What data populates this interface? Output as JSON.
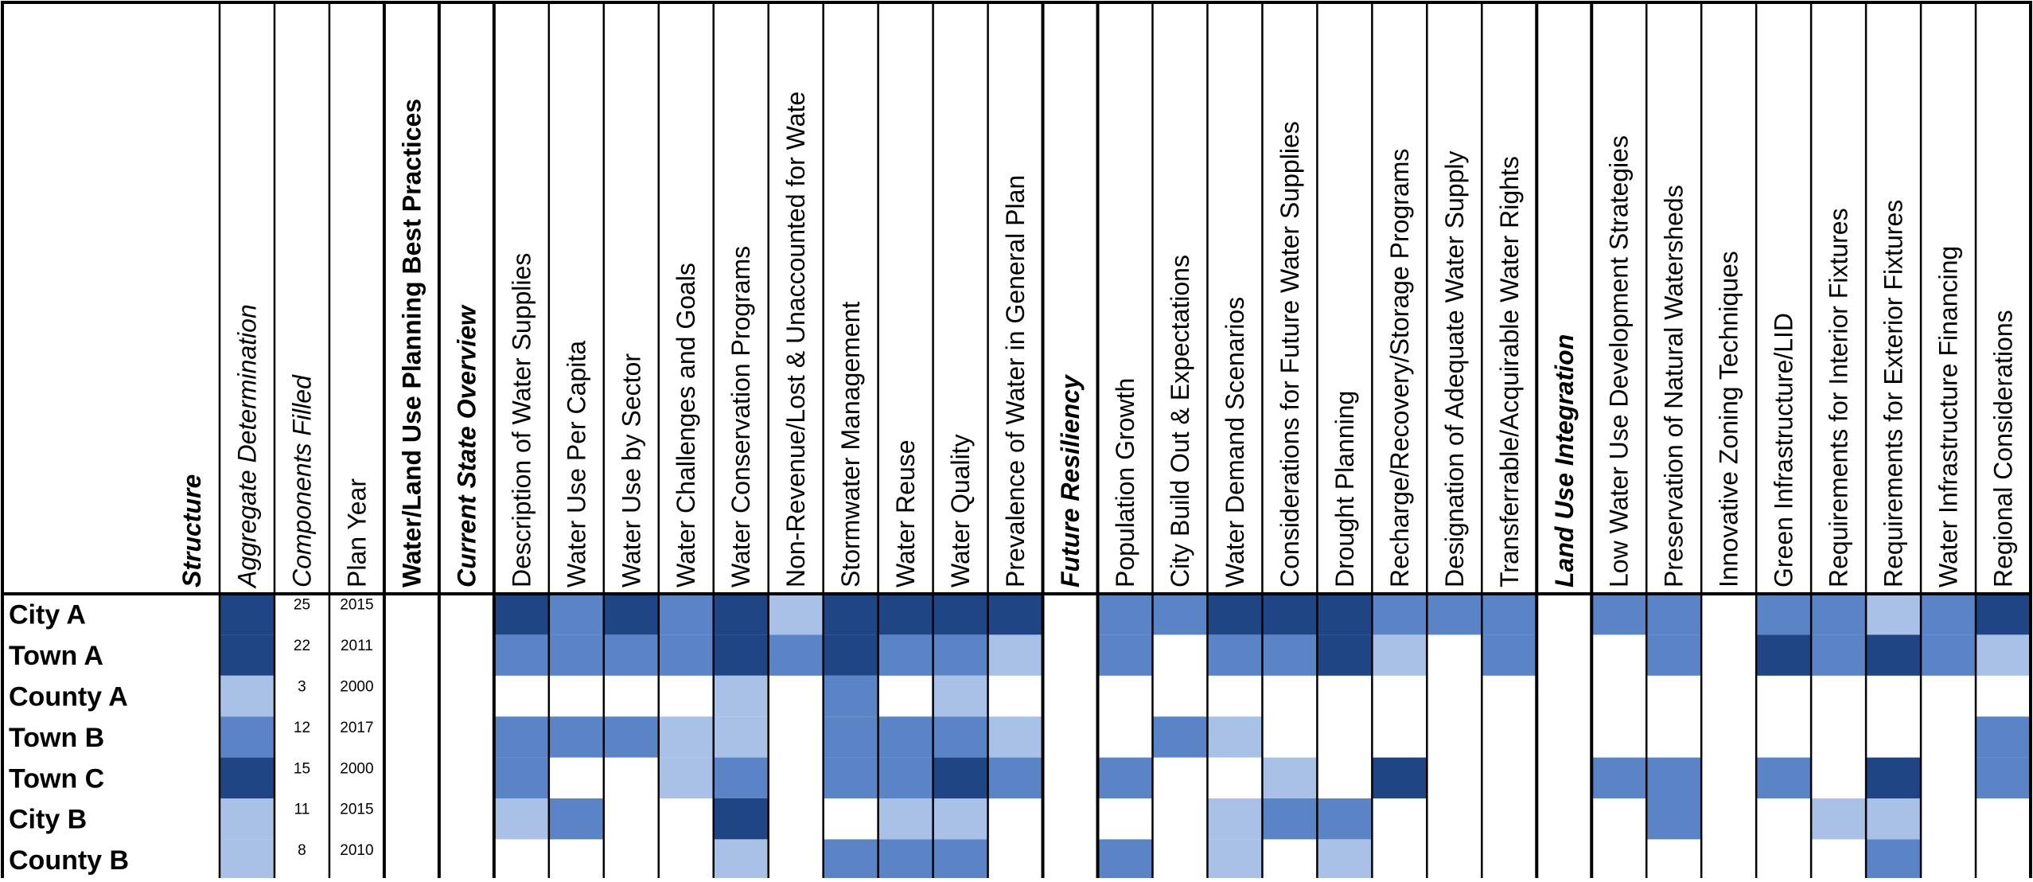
{
  "chart_data": {
    "type": "heatmap",
    "columns": [
      {
        "label": "Structure",
        "style": "bolditalic",
        "kind": "structure"
      },
      {
        "label": "Aggregate Determination",
        "style": "italic",
        "kind": "aggregate"
      },
      {
        "label": "Components Filled",
        "style": "italic",
        "kind": "components"
      },
      {
        "label": "Plan Year",
        "style": "normal",
        "kind": "year"
      },
      {
        "label": "Water/Land Use Planning Best Practices",
        "style": "bold",
        "kind": "section"
      },
      {
        "label": "Current State Overview",
        "style": "bolditalic",
        "kind": "section"
      },
      {
        "label": "Description of Water Supplies",
        "style": "normal",
        "kind": "data"
      },
      {
        "label": "Water Use Per Capita",
        "style": "normal",
        "kind": "data"
      },
      {
        "label": "Water Use by Sector",
        "style": "normal",
        "kind": "data"
      },
      {
        "label": "Water Challenges and Goals",
        "style": "normal",
        "kind": "data"
      },
      {
        "label": "Water Conservation Programs",
        "style": "normal",
        "kind": "data"
      },
      {
        "label": "Non-Revenue/Lost & Unaccounted for Wate",
        "style": "normal",
        "kind": "data"
      },
      {
        "label": "Stormwater Management",
        "style": "normal",
        "kind": "data"
      },
      {
        "label": "Water Reuse",
        "style": "normal",
        "kind": "data"
      },
      {
        "label": "Water Quality",
        "style": "normal",
        "kind": "data"
      },
      {
        "label": "Prevalence of Water in General Plan",
        "style": "normal",
        "kind": "data"
      },
      {
        "label": "Future Resiliency",
        "style": "bolditalic",
        "kind": "section"
      },
      {
        "label": "Population Growth",
        "style": "normal",
        "kind": "data"
      },
      {
        "label": "City Build Out & Expectations",
        "style": "normal",
        "kind": "data"
      },
      {
        "label": "Water Demand Scenarios",
        "style": "normal",
        "kind": "data"
      },
      {
        "label": "Considerations for Future Water Supplies",
        "style": "normal",
        "kind": "data"
      },
      {
        "label": "Drought Planning",
        "style": "normal",
        "kind": "data"
      },
      {
        "label": "Recharge/Recovery/Storage Programs",
        "style": "normal",
        "kind": "data"
      },
      {
        "label": "Designation of Adequate Water Supply",
        "style": "normal",
        "kind": "data"
      },
      {
        "label": "Transferrable/Acquirable Water Rights",
        "style": "normal",
        "kind": "data"
      },
      {
        "label": "Land Use Integration",
        "style": "bolditalic",
        "kind": "section"
      },
      {
        "label": "Low Water Use Development Strategies",
        "style": "normal",
        "kind": "data"
      },
      {
        "label": "Preservation of Natural Watersheds",
        "style": "normal",
        "kind": "data"
      },
      {
        "label": "Innovative Zoning Techniques",
        "style": "normal",
        "kind": "data"
      },
      {
        "label": "Green Infrastructure/LID",
        "style": "normal",
        "kind": "data"
      },
      {
        "label": "Requirements for Interior Fixtures",
        "style": "normal",
        "kind": "data"
      },
      {
        "label": "Requirements for Exterior Fixtures",
        "style": "normal",
        "kind": "data"
      },
      {
        "label": "Water Infrastructure Financing",
        "style": "normal",
        "kind": "data"
      },
      {
        "label": "Regional Considerations",
        "style": "normal",
        "kind": "data"
      }
    ],
    "rows": [
      {
        "name": "City A",
        "aggregate": 3,
        "components": "25",
        "year": "2015",
        "values": [
          3,
          2,
          3,
          2,
          3,
          1,
          3,
          3,
          3,
          3,
          2,
          2,
          3,
          3,
          3,
          2,
          2,
          2,
          2,
          2,
          0,
          2,
          2,
          1,
          2,
          3
        ]
      },
      {
        "name": "Town A",
        "aggregate": 3,
        "components": "22",
        "year": "2011",
        "values": [
          2,
          2,
          2,
          2,
          3,
          2,
          3,
          2,
          2,
          1,
          2,
          0,
          2,
          2,
          3,
          1,
          0,
          2,
          0,
          2,
          0,
          3,
          2,
          3,
          2,
          1
        ]
      },
      {
        "name": "County A",
        "aggregate": 1,
        "components": "3",
        "year": "2000",
        "values": [
          0,
          0,
          0,
          0,
          1,
          0,
          2,
          0,
          1,
          0,
          0,
          0,
          0,
          0,
          0,
          0,
          0,
          0,
          0,
          0,
          0,
          0,
          0,
          0,
          0,
          0
        ]
      },
      {
        "name": "Town B",
        "aggregate": 2,
        "components": "12",
        "year": "2017",
        "values": [
          2,
          2,
          2,
          1,
          1,
          0,
          2,
          2,
          2,
          1,
          0,
          2,
          1,
          0,
          0,
          0,
          0,
          0,
          0,
          0,
          0,
          0,
          0,
          0,
          0,
          2
        ]
      },
      {
        "name": "Town C",
        "aggregate": 3,
        "components": "15",
        "year": "2000",
        "values": [
          2,
          0,
          0,
          1,
          2,
          0,
          2,
          2,
          3,
          2,
          2,
          0,
          0,
          1,
          0,
          3,
          0,
          0,
          2,
          2,
          0,
          2,
          0,
          3,
          0,
          2
        ]
      },
      {
        "name": "City B",
        "aggregate": 1,
        "components": "11",
        "year": "2015",
        "values": [
          1,
          2,
          0,
          0,
          3,
          0,
          0,
          1,
          1,
          0,
          0,
          0,
          1,
          2,
          2,
          0,
          0,
          0,
          0,
          2,
          0,
          0,
          1,
          1,
          0,
          0
        ]
      },
      {
        "name": "County B",
        "aggregate": 1,
        "components": "8",
        "year": "2010",
        "values": [
          0,
          0,
          0,
          0,
          1,
          0,
          2,
          2,
          2,
          0,
          2,
          0,
          1,
          0,
          1,
          0,
          0,
          0,
          0,
          0,
          0,
          0,
          0,
          2,
          0,
          0
        ]
      }
    ],
    "color_scale": {
      "0": "#ffffff",
      "1": "#a9c1e7",
      "2": "#5a84c6",
      "3": "#1f4584"
    },
    "grid_color": "#000000"
  }
}
